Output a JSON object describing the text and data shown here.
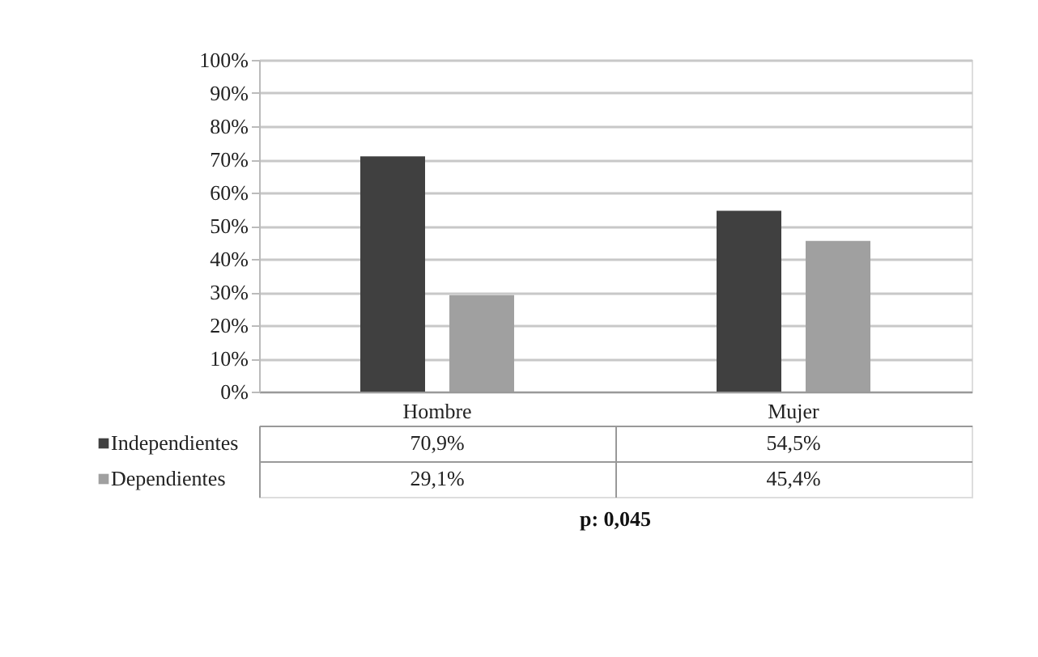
{
  "chart_data": {
    "type": "bar",
    "categories": [
      "Hombre",
      "Mujer"
    ],
    "series": [
      {
        "name": "Independientes",
        "color": "#404040",
        "values": [
          70.9,
          54.5
        ]
      },
      {
        "name": "Dependientes",
        "color": "#a0a0a0",
        "values": [
          29.1,
          45.4
        ]
      }
    ],
    "value_labels": [
      [
        "70,9%",
        "54,5%"
      ],
      [
        "29,1%",
        "45,4%"
      ]
    ],
    "ylim": [
      0,
      100
    ],
    "yticks": [
      {
        "value": 0,
        "label": "0%"
      },
      {
        "value": 10,
        "label": "10%"
      },
      {
        "value": 20,
        "label": "20%"
      },
      {
        "value": 30,
        "label": "30%"
      },
      {
        "value": 40,
        "label": "40%"
      },
      {
        "value": 50,
        "label": "50%"
      },
      {
        "value": 60,
        "label": "60%"
      },
      {
        "value": 70,
        "label": "70%"
      },
      {
        "value": 80,
        "label": "80%"
      },
      {
        "value": 90,
        "label": "90%"
      },
      {
        "value": 100,
        "label": "100%"
      }
    ],
    "grid": "y",
    "legend": "bottom",
    "annotations": [
      "p: 0,045"
    ]
  }
}
